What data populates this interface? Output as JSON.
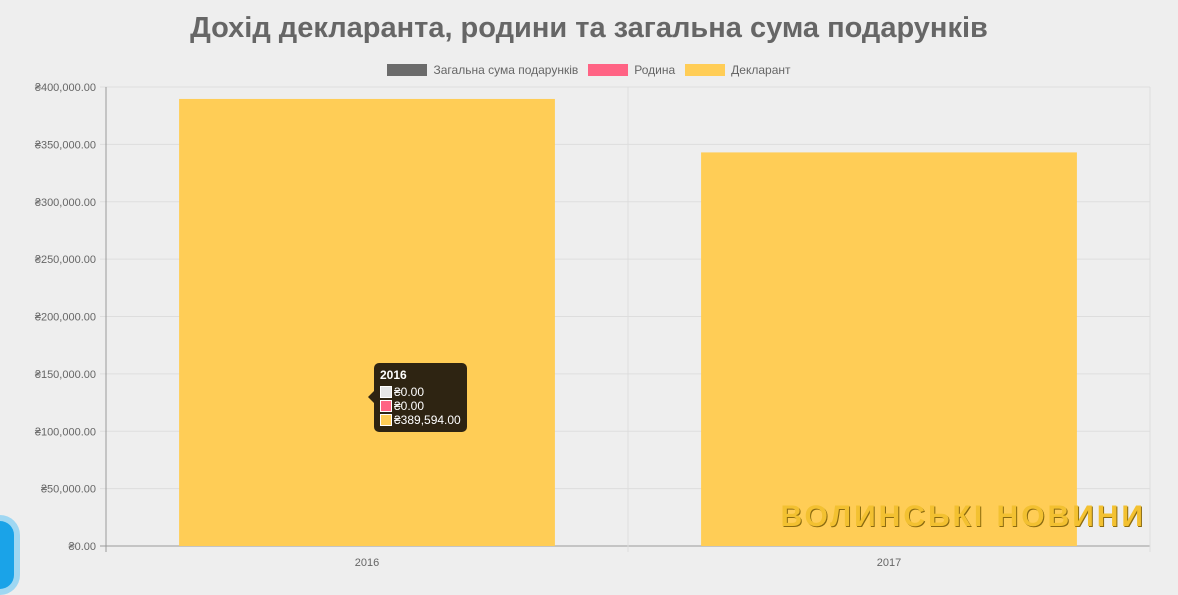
{
  "chart_data": {
    "type": "bar",
    "title": "Дохід декларанта, родини та загальна сума подарунків",
    "categories": [
      "2016",
      "2017"
    ],
    "series": [
      {
        "name": "Загальна сума подарунків",
        "color": "#6b6b6b",
        "values": [
          0,
          0
        ]
      },
      {
        "name": "Родина",
        "color": "#ff6384",
        "values": [
          0,
          0
        ]
      },
      {
        "name": "Декларант",
        "color": "#ffcd56",
        "values": [
          389594,
          343000
        ]
      }
    ],
    "ylim": [
      0,
      400000
    ],
    "yticks": [
      "₴0.00",
      "₴50,000.00",
      "₴100,000.00",
      "₴150,000.00",
      "₴200,000.00",
      "₴250,000.00",
      "₴300,000.00",
      "₴350,000.00",
      "₴400,000.00"
    ],
    "grid": true,
    "legend": "top",
    "stacked": true
  },
  "tooltip": {
    "title": "2016",
    "rows": [
      {
        "text": "₴0.00",
        "color": "#e6e6e6"
      },
      {
        "text": "₴0.00",
        "color": "#ff6384"
      },
      {
        "text": "₴389,594.00",
        "color": "#ffcd56"
      }
    ]
  },
  "watermark": "ВОЛИНСЬКІ НОВИНИ"
}
